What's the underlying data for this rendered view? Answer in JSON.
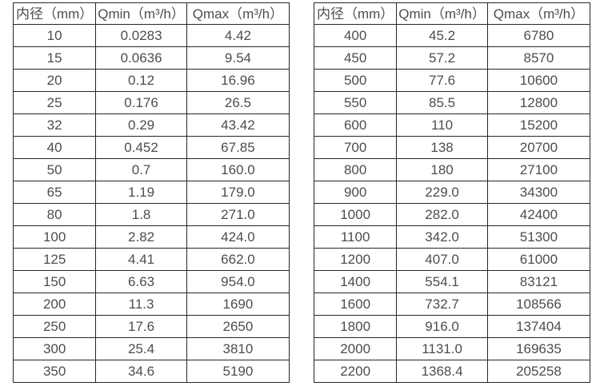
{
  "page": {
    "background": "#ffffff",
    "border_color": "#262626",
    "text_color": "#4d4d4d"
  },
  "left_table": {
    "columns": [
      "内径（mm）",
      "Qmin（m³/h）",
      "Qmax（m³/h）"
    ],
    "rows": [
      [
        "10",
        "0.0283",
        "4.42"
      ],
      [
        "15",
        "0.0636",
        "9.54"
      ],
      [
        "20",
        "0.12",
        "16.96"
      ],
      [
        "25",
        "0.176",
        "26.5"
      ],
      [
        "32",
        "0.29",
        "43.42"
      ],
      [
        "40",
        "0.452",
        "67.85"
      ],
      [
        "50",
        "0.7",
        "160.0"
      ],
      [
        "65",
        "1.19",
        "179.0"
      ],
      [
        "80",
        "1.8",
        "271.0"
      ],
      [
        "100",
        "2.82",
        "424.0"
      ],
      [
        "125",
        "4.41",
        "662.0"
      ],
      [
        "150",
        "6.63",
        "954.0"
      ],
      [
        "200",
        "11.3",
        "1690"
      ],
      [
        "250",
        "17.6",
        "2650"
      ],
      [
        "300",
        "25.4",
        "3810"
      ],
      [
        "350",
        "34.6",
        "5190"
      ]
    ]
  },
  "right_table": {
    "columns": [
      "内径（mm）",
      "Qmin（m³/h）",
      "Qmax（m³/h）"
    ],
    "rows": [
      [
        "400",
        "45.2",
        "6780"
      ],
      [
        "450",
        "57.2",
        "8570"
      ],
      [
        "500",
        "77.6",
        "10600"
      ],
      [
        "550",
        "85.5",
        "12800"
      ],
      [
        "600",
        "110",
        "15200"
      ],
      [
        "700",
        "138",
        "20700"
      ],
      [
        "800",
        "180",
        "27100"
      ],
      [
        "900",
        "229.0",
        "34300"
      ],
      [
        "1000",
        "282.0",
        "42400"
      ],
      [
        "1100",
        "342.0",
        "51300"
      ],
      [
        "1200",
        "407.0",
        "61000"
      ],
      [
        "1400",
        "554.1",
        "83121"
      ],
      [
        "1600",
        "732.7",
        "108566"
      ],
      [
        "1800",
        "916.0",
        "137404"
      ],
      [
        "2000",
        "1131.0",
        "169635"
      ],
      [
        "2200",
        "1368.4",
        "205258"
      ]
    ]
  }
}
